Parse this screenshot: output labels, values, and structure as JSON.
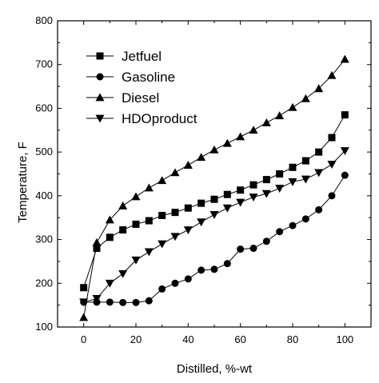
{
  "chart_data": {
    "type": "line",
    "xlabel": "Distilled, %-wt",
    "ylabel": "Temperature, F",
    "xlim": [
      -10,
      110
    ],
    "ylim": [
      100,
      800
    ],
    "xticks": [
      0,
      20,
      40,
      60,
      80,
      100
    ],
    "yticks": [
      100,
      200,
      300,
      400,
      500,
      600,
      700,
      800
    ],
    "legend": "upper-left",
    "grid": false,
    "series": [
      {
        "name": "Jetfuel",
        "marker": "square",
        "x": [
          0,
          5,
          10,
          15,
          20,
          25,
          30,
          35,
          40,
          45,
          50,
          55,
          60,
          65,
          70,
          75,
          80,
          85,
          90,
          95,
          100
        ],
        "y": [
          190,
          280,
          305,
          322,
          335,
          343,
          355,
          362,
          372,
          383,
          392,
          403,
          413,
          425,
          437,
          450,
          465,
          480,
          500,
          533,
          585
        ]
      },
      {
        "name": "Gasoline",
        "marker": "circle",
        "x": [
          0,
          5,
          10,
          15,
          20,
          25,
          30,
          35,
          40,
          45,
          50,
          55,
          60,
          65,
          70,
          75,
          80,
          85,
          90,
          95,
          100
        ],
        "y": [
          157,
          157,
          157,
          156,
          156,
          160,
          187,
          200,
          210,
          230,
          232,
          245,
          278,
          280,
          296,
          318,
          332,
          347,
          368,
          400,
          447
        ]
      },
      {
        "name": "Diesel",
        "marker": "triangle-up",
        "x": [
          0,
          5,
          10,
          15,
          20,
          25,
          30,
          35,
          40,
          45,
          50,
          55,
          60,
          65,
          70,
          75,
          80,
          85,
          90,
          95,
          100
        ],
        "y": [
          122,
          293,
          345,
          377,
          398,
          418,
          435,
          453,
          470,
          488,
          505,
          520,
          535,
          550,
          567,
          583,
          602,
          622,
          645,
          675,
          712
        ]
      },
      {
        "name": "HDOproduct",
        "marker": "triangle-down",
        "x": [
          0,
          5,
          10,
          15,
          20,
          25,
          30,
          35,
          40,
          45,
          50,
          55,
          60,
          65,
          70,
          75,
          80,
          85,
          90,
          95,
          100
        ],
        "y": [
          157,
          165,
          200,
          222,
          253,
          272,
          290,
          307,
          322,
          340,
          357,
          372,
          385,
          397,
          405,
          417,
          432,
          438,
          453,
          472,
          503
        ]
      }
    ]
  }
}
